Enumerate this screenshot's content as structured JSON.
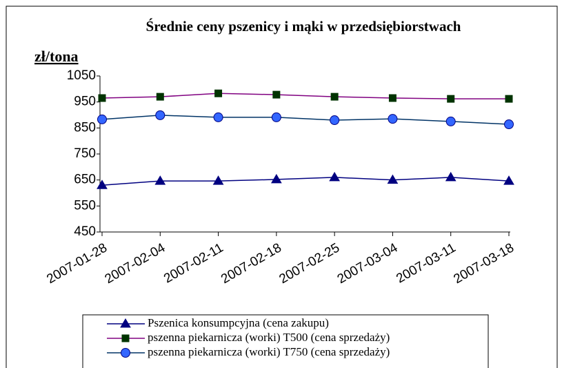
{
  "chart_data": {
    "type": "line",
    "title": "Średnie ceny pszenicy i mąki w przedsiębiorstwach",
    "y_label": "zł/tona",
    "categories": [
      "2007-01-28",
      "2007-02-04",
      "2007-02-11",
      "2007-02-18",
      "2007-02-25",
      "2007-03-04",
      "2007-03-11",
      "2007-03-18"
    ],
    "series": [
      {
        "name": "Pszenica konsumpcyjna (cena zakupu)",
        "color": "#000080",
        "marker": "triangle",
        "marker_color": "#000080",
        "values": [
          630,
          646,
          646,
          652,
          660,
          650,
          660,
          646
        ]
      },
      {
        "name": "pszenna piekarnicza (worki) T500 (cena sprzedaży)",
        "color": "#800080",
        "marker": "square",
        "marker_color": "#003300",
        "values": [
          965,
          970,
          983,
          978,
          970,
          965,
          962,
          962
        ]
      },
      {
        "name": "pszenna piekarnicza (worki) T750 (cena sprzedaży)",
        "color": "#003366",
        "marker": "circle",
        "marker_color": "#3366ff",
        "values": [
          883,
          899,
          891,
          891,
          880,
          885,
          875,
          864
        ]
      }
    ],
    "ylim": [
      450,
      1050
    ],
    "yticks": [
      450,
      550,
      650,
      750,
      850,
      950,
      1050
    ],
    "grid": false
  }
}
